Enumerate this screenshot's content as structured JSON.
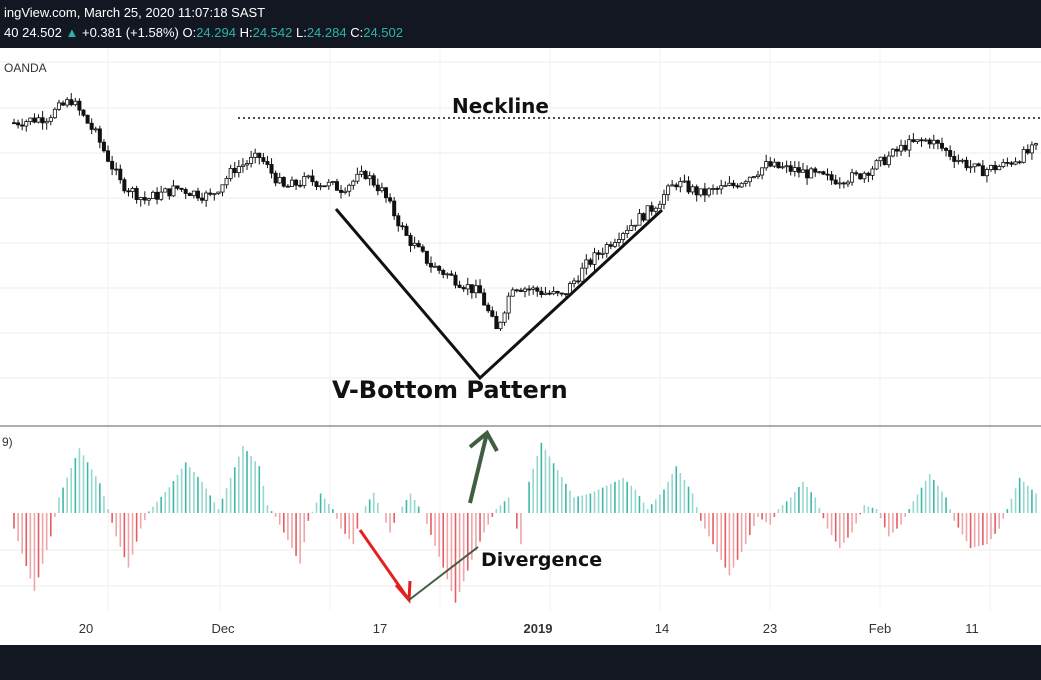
{
  "header": {
    "source_line": "ingView.com, March 25, 2020 11:07:18 SAST",
    "ticker_prefix": "40",
    "last": "24.502",
    "up_arrow": "▲",
    "change": "+0.381 (+1.58%)",
    "o_label": "O:",
    "o_val": "24.294",
    "h_label": "H:",
    "h_val": "24.542",
    "l_label": "L:",
    "l_val": "24.284",
    "c_label": "C:",
    "c_val": "24.502"
  },
  "broker": "OANDA",
  "indicator_label": "9)",
  "annotations": {
    "neckline": "Neckline",
    "pattern": "V-Bottom Pattern",
    "divergence": "Divergence"
  },
  "colors": {
    "up": "#2fb0a5",
    "down": "#e05c60",
    "hist_up": "#3fb7a8",
    "hist_down": "#e35d62",
    "arrow_red": "#e32020",
    "arrow_green": "#3f5e42",
    "background_bar": "#131722"
  },
  "chart_data": [
    {
      "type": "candlestick",
      "title": "",
      "x_tick_labels": [
        "20",
        "Dec",
        "17",
        "2019",
        "14",
        "23",
        "Feb",
        "11"
      ],
      "grid": true,
      "trend": [
        {
          "i": 0,
          "v": 0.78
        },
        {
          "i": 8,
          "v": 0.8
        },
        {
          "i": 14,
          "v": 0.86
        },
        {
          "i": 20,
          "v": 0.74
        },
        {
          "i": 26,
          "v": 0.57
        },
        {
          "i": 32,
          "v": 0.51
        },
        {
          "i": 40,
          "v": 0.55
        },
        {
          "i": 48,
          "v": 0.52
        },
        {
          "i": 54,
          "v": 0.62
        },
        {
          "i": 60,
          "v": 0.66
        },
        {
          "i": 66,
          "v": 0.55
        },
        {
          "i": 72,
          "v": 0.58
        },
        {
          "i": 80,
          "v": 0.55
        },
        {
          "i": 86,
          "v": 0.6
        },
        {
          "i": 90,
          "v": 0.54
        },
        {
          "i": 96,
          "v": 0.38
        },
        {
          "i": 102,
          "v": 0.28
        },
        {
          "i": 108,
          "v": 0.23
        },
        {
          "i": 114,
          "v": 0.18
        },
        {
          "i": 118,
          "v": 0.05
        },
        {
          "i": 122,
          "v": 0.21
        },
        {
          "i": 128,
          "v": 0.19
        },
        {
          "i": 134,
          "v": 0.17
        },
        {
          "i": 140,
          "v": 0.28
        },
        {
          "i": 148,
          "v": 0.39
        },
        {
          "i": 156,
          "v": 0.48
        },
        {
          "i": 162,
          "v": 0.57
        },
        {
          "i": 168,
          "v": 0.53
        },
        {
          "i": 176,
          "v": 0.56
        },
        {
          "i": 184,
          "v": 0.63
        },
        {
          "i": 192,
          "v": 0.61
        },
        {
          "i": 200,
          "v": 0.58
        },
        {
          "i": 206,
          "v": 0.59
        },
        {
          "i": 212,
          "v": 0.64
        },
        {
          "i": 218,
          "v": 0.7
        },
        {
          "i": 224,
          "v": 0.72
        },
        {
          "i": 230,
          "v": 0.66
        },
        {
          "i": 236,
          "v": 0.61
        },
        {
          "i": 242,
          "v": 0.63
        },
        {
          "i": 250,
          "v": 0.69
        }
      ],
      "candle_count": 251,
      "neckline_level": 0.705
    },
    {
      "type": "histogram",
      "title": "",
      "series": [
        {
          "anchors": [
            {
              "i": 0,
              "v": -0.2
            },
            {
              "i": 5,
              "v": -1.0
            },
            {
              "i": 9,
              "v": -0.3
            },
            {
              "i": 11,
              "v": 0.2
            },
            {
              "i": 16,
              "v": 0.83
            },
            {
              "i": 21,
              "v": 0.38
            },
            {
              "i": 23,
              "v": 0.05
            },
            {
              "i": 25,
              "v": -0.3
            },
            {
              "i": 28,
              "v": -0.7
            },
            {
              "i": 31,
              "v": -0.2
            },
            {
              "i": 33,
              "v": 0.02
            },
            {
              "i": 38,
              "v": 0.33
            },
            {
              "i": 42,
              "v": 0.65
            },
            {
              "i": 46,
              "v": 0.4
            },
            {
              "i": 50,
              "v": 0.05
            },
            {
              "i": 53,
              "v": 0.45
            },
            {
              "i": 56,
              "v": 0.86
            },
            {
              "i": 60,
              "v": 0.6
            },
            {
              "i": 62,
              "v": 0.1
            },
            {
              "i": 64,
              "v": -0.05
            },
            {
              "i": 66,
              "v": -0.25
            },
            {
              "i": 70,
              "v": -0.65
            },
            {
              "i": 72,
              "v": -0.1
            },
            {
              "i": 75,
              "v": 0.25
            },
            {
              "i": 78,
              "v": 0.05
            },
            {
              "i": 80,
              "v": -0.2
            },
            {
              "i": 83,
              "v": -0.4
            },
            {
              "i": 85,
              "v": 0.0
            },
            {
              "i": 88,
              "v": 0.26
            },
            {
              "i": 90,
              "v": 0.0
            },
            {
              "i": 92,
              "v": -0.25
            },
            {
              "i": 94,
              "v": 0.0
            },
            {
              "i": 97,
              "v": 0.25
            },
            {
              "i": 100,
              "v": 0.0
            },
            {
              "i": 105,
              "v": -0.7
            },
            {
              "i": 108,
              "v": -1.15
            },
            {
              "i": 112,
              "v": -0.6
            },
            {
              "i": 115,
              "v": -0.25
            },
            {
              "i": 118,
              "v": 0.05
            },
            {
              "i": 121,
              "v": 0.2
            },
            {
              "i": 124,
              "v": -0.4
            },
            {
              "i": 126,
              "v": 0.4
            },
            {
              "i": 129,
              "v": 0.9
            },
            {
              "i": 133,
              "v": 0.55
            },
            {
              "i": 137,
              "v": 0.2
            },
            {
              "i": 141,
              "v": 0.25
            },
            {
              "i": 145,
              "v": 0.35
            },
            {
              "i": 149,
              "v": 0.45
            },
            {
              "i": 152,
              "v": 0.3
            },
            {
              "i": 155,
              "v": 0.05
            },
            {
              "i": 159,
              "v": 0.3
            },
            {
              "i": 162,
              "v": 0.6
            },
            {
              "i": 166,
              "v": 0.25
            },
            {
              "i": 168,
              "v": -0.1
            },
            {
              "i": 172,
              "v": -0.5
            },
            {
              "i": 175,
              "v": -0.8
            },
            {
              "i": 179,
              "v": -0.4
            },
            {
              "i": 182,
              "v": -0.05
            },
            {
              "i": 185,
              "v": -0.15
            },
            {
              "i": 187,
              "v": 0.05
            },
            {
              "i": 190,
              "v": 0.2
            },
            {
              "i": 193,
              "v": 0.4
            },
            {
              "i": 196,
              "v": 0.2
            },
            {
              "i": 199,
              "v": -0.2
            },
            {
              "i": 202,
              "v": -0.45
            },
            {
              "i": 205,
              "v": -0.25
            },
            {
              "i": 208,
              "v": 0.1
            },
            {
              "i": 211,
              "v": 0.05
            },
            {
              "i": 214,
              "v": -0.3
            },
            {
              "i": 217,
              "v": -0.15
            },
            {
              "i": 220,
              "v": 0.15
            },
            {
              "i": 224,
              "v": 0.5
            },
            {
              "i": 228,
              "v": 0.2
            },
            {
              "i": 230,
              "v": -0.1
            },
            {
              "i": 234,
              "v": -0.45
            },
            {
              "i": 238,
              "v": -0.4
            },
            {
              "i": 241,
              "v": -0.2
            },
            {
              "i": 243,
              "v": 0.05
            },
            {
              "i": 246,
              "v": 0.45
            },
            {
              "i": 250,
              "v": 0.25
            }
          ]
        }
      ],
      "bar_count": 251
    }
  ]
}
